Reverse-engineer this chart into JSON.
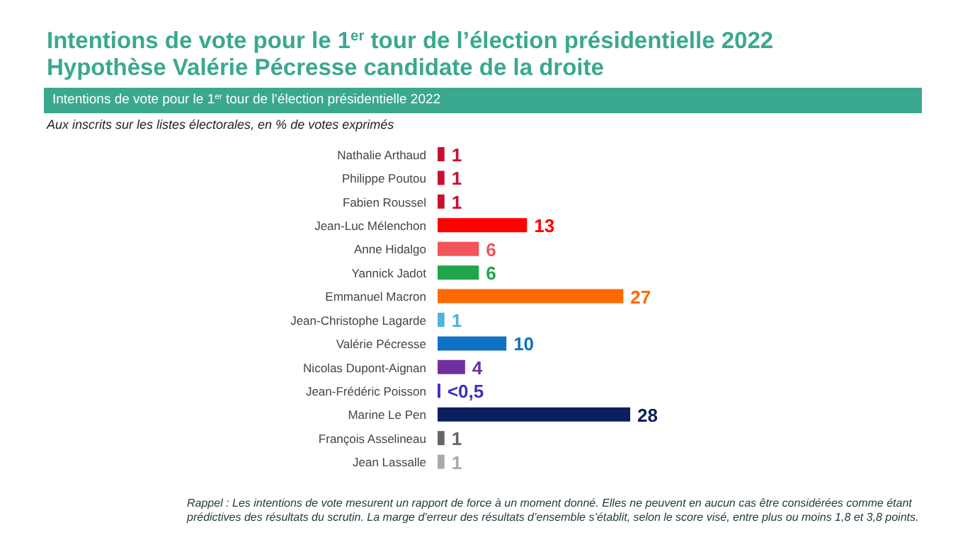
{
  "chart_data": {
    "type": "bar",
    "orientation": "horizontal",
    "title": "Intentions de vote pour le 1$^{er}$ tour de l’élection présidentielle 2022",
    "subtitle": "Hypothèse Valérie Pécresse candidate de la droite",
    "annotations": [
      "Intentions de vote pour le 1$^{er}$ tour de l’élection présidentielle 2022",
      "Aux inscrits sur les listes électorales, en % de votes exprimés",
      "Rappel : Les intentions de vote mesurent un rapport de force à un moment donné. Elles ne peuvent en aucun cas être considérées comme étant prédictives des résultats du scrutin. La marge d’erreur des résultats d’ensemble s’établit, selon le score visé, entre plus ou moins 1,8 et 3,8 points."
    ],
    "categories": [
      "Nathalie Arthaud",
      "Philippe Poutou",
      "Fabien Roussel",
      "Jean-Luc Mélenchon",
      "Anne Hidalgo",
      "Yannick Jadot",
      "Emmanuel Macron",
      "Jean-Christophe Lagarde",
      "Valérie Pécresse",
      "Nicolas Dupont-Aignan",
      "Jean-Frédéric Poisson",
      "Marine Le Pen",
      "François Asselineau",
      "Jean Lassalle"
    ],
    "values": [
      1,
      1,
      1,
      13,
      6,
      6,
      27,
      1,
      10,
      4,
      0.4,
      28,
      1,
      1
    ],
    "value_labels": [
      "1",
      "1",
      "1",
      "13",
      "6",
      "6",
      "27",
      "1",
      "10",
      "4",
      "<0,5",
      "28",
      "1",
      "1"
    ],
    "colors": [
      "#c8102e",
      "#c8102e",
      "#c8102e",
      "#ff0000",
      "#f2545b",
      "#1fa64a",
      "#ff6a00",
      "#4fb3e0",
      "#1070c4",
      "#7030a0",
      "#3a2fbf",
      "#0a1f5c",
      "#666666",
      "#aaaaaa"
    ]
  }
}
